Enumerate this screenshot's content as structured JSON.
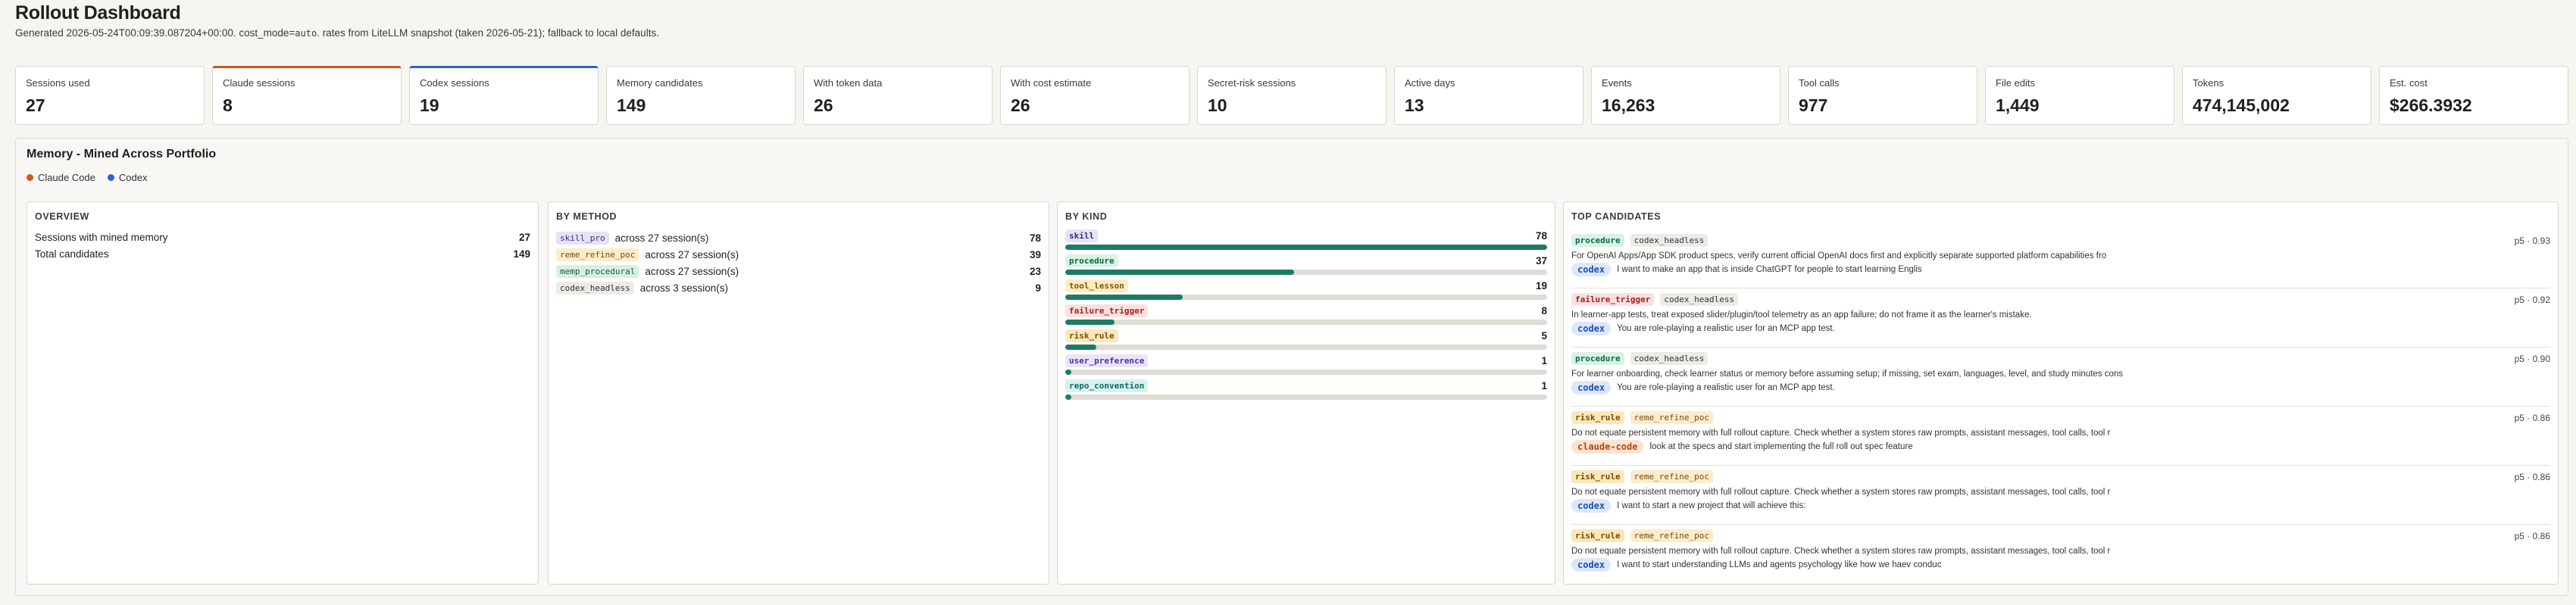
{
  "header": {
    "title": "Rollout Dashboard",
    "subtitle_pre": "Generated 2026-05-24T00:09:39.087204+00:00. cost_mode=",
    "cost_mode": "auto",
    "subtitle_post": ". rates from LiteLLM snapshot (taken 2026-05-21); fallback to local defaults."
  },
  "kpis": [
    {
      "label": "Sessions used",
      "value": "27",
      "accent": ""
    },
    {
      "label": "Claude sessions",
      "value": "8",
      "accent": "orange"
    },
    {
      "label": "Codex sessions",
      "value": "19",
      "accent": "blue"
    },
    {
      "label": "Memory candidates",
      "value": "149",
      "accent": ""
    },
    {
      "label": "With token data",
      "value": "26",
      "accent": ""
    },
    {
      "label": "With cost estimate",
      "value": "26",
      "accent": ""
    },
    {
      "label": "Secret-risk sessions",
      "value": "10",
      "accent": ""
    },
    {
      "label": "Active days",
      "value": "13",
      "accent": ""
    },
    {
      "label": "Events",
      "value": "16,263",
      "accent": ""
    },
    {
      "label": "Tool calls",
      "value": "977",
      "accent": ""
    },
    {
      "label": "File edits",
      "value": "1,449",
      "accent": ""
    },
    {
      "label": "Tokens",
      "value": "474,145,002",
      "accent": ""
    },
    {
      "label": "Est. cost",
      "value": "$266.3932",
      "accent": ""
    }
  ],
  "memory": {
    "title": "Memory - Mined Across Portfolio",
    "legend": [
      {
        "label": "Claude Code",
        "color": "#d9531e"
      },
      {
        "label": "Codex",
        "color": "#2a62d8"
      }
    ],
    "overview": {
      "title": "OVERVIEW",
      "rows": [
        {
          "label": "Sessions with mined memory",
          "value": "27"
        },
        {
          "label": "Total candidates",
          "value": "149"
        }
      ]
    },
    "by_method": {
      "title": "BY METHOD",
      "rows": [
        {
          "tag": "skill_pro",
          "tag_class": "p-skill",
          "text": "across 27 session(s)",
          "value": "78"
        },
        {
          "tag": "reme_refine_poc",
          "tag_class": "p-reme",
          "text": "across 27 session(s)",
          "value": "39"
        },
        {
          "tag": "memp_procedural",
          "tag_class": "p-memp",
          "text": "across 27 session(s)",
          "value": "23"
        },
        {
          "tag": "codex_headless",
          "tag_class": "p-codexh",
          "text": "across 3 session(s)",
          "value": "9"
        }
      ]
    },
    "by_kind": {
      "title": "BY KIND",
      "max": 78,
      "rows": [
        {
          "tag": "skill",
          "tag_class": "p-skillkind",
          "value": 78
        },
        {
          "tag": "procedure",
          "tag_class": "p-procedure",
          "value": 37
        },
        {
          "tag": "tool_lesson",
          "tag_class": "p-tool",
          "value": 19
        },
        {
          "tag": "failure_trigger",
          "tag_class": "p-failure",
          "value": 8
        },
        {
          "tag": "risk_rule",
          "tag_class": "p-risk",
          "value": 5
        },
        {
          "tag": "user_preference",
          "tag_class": "p-user",
          "value": 1
        },
        {
          "tag": "repo_convention",
          "tag_class": "p-repo",
          "value": 1
        }
      ]
    },
    "top_candidates": {
      "title": "TOP CANDIDATES",
      "items": [
        {
          "kind": "procedure",
          "kind_class": "p-procedure",
          "method": "codex_headless",
          "method_class": "p-codexh",
          "score": "p5 · 0.93",
          "desc": "For OpenAI Apps/App SDK product specs, verify current official OpenAI docs first and explicitly separate supported platform capabilities fro",
          "source": "codex",
          "source_class": "src-codex",
          "prompt": "I want to make an app that is inside ChatGPT for people to start learning Englis"
        },
        {
          "kind": "failure_trigger",
          "kind_class": "p-failure",
          "method": "codex_headless",
          "method_class": "p-codexh",
          "score": "p5 · 0.92",
          "desc": "In learner-app tests, treat exposed slider/plugin/tool telemetry as an app failure; do not frame it as the learner's mistake.",
          "source": "codex",
          "source_class": "src-codex",
          "prompt": "You are role-playing a realistic user for an MCP app test."
        },
        {
          "kind": "procedure",
          "kind_class": "p-procedure",
          "method": "codex_headless",
          "method_class": "p-codexh",
          "score": "p5 · 0.90",
          "desc": "For learner onboarding, check learner status or memory before assuming setup; if missing, set exam, languages, level, and study minutes cons",
          "source": "codex",
          "source_class": "src-codex",
          "prompt": "You are role-playing a realistic user for an MCP app test."
        },
        {
          "kind": "risk_rule",
          "kind_class": "p-risk",
          "method": "reme_refine_poc",
          "method_class": "p-reme",
          "score": "p5 · 0.86",
          "desc": "Do not equate persistent memory with full rollout capture. Check whether a system stores raw prompts, assistant messages, tool calls, tool r",
          "source": "claude-code",
          "source_class": "src-claude",
          "prompt": "look at the specs and start implementing the full roll out spec feature"
        },
        {
          "kind": "risk_rule",
          "kind_class": "p-risk",
          "method": "reme_refine_poc",
          "method_class": "p-reme",
          "score": "p5 · 0.86",
          "desc": "Do not equate persistent memory with full rollout capture. Check whether a system stores raw prompts, assistant messages, tool calls, tool r",
          "source": "codex",
          "source_class": "src-codex",
          "prompt": "I want to start a new project that will achieve this:"
        },
        {
          "kind": "risk_rule",
          "kind_class": "p-risk",
          "method": "reme_refine_poc",
          "method_class": "p-reme",
          "score": "p5 · 0.86",
          "desc": "Do not equate persistent memory with full rollout capture. Check whether a system stores raw prompts, assistant messages, tool calls, tool r",
          "source": "codex",
          "source_class": "src-codex",
          "prompt": "I want to start understanding LLMs and agents psychology like how we haev conduc"
        }
      ]
    }
  }
}
